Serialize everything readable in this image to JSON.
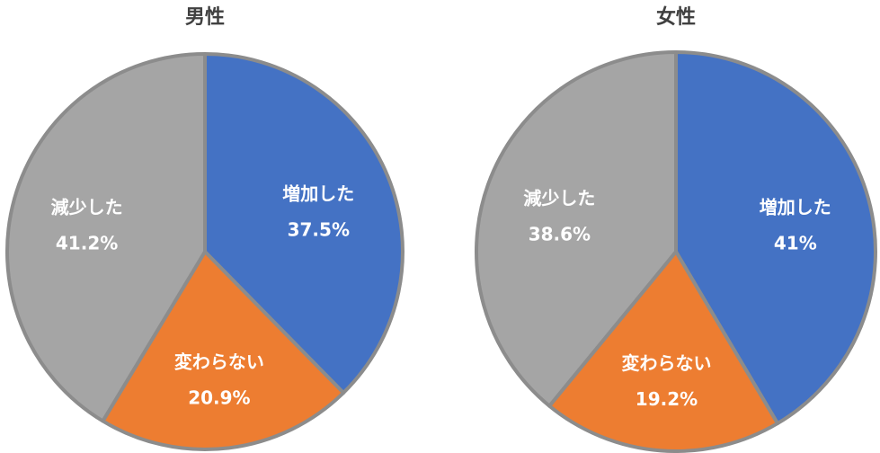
{
  "chart_data": [
    {
      "type": "pie",
      "title": "男性",
      "categories": [
        "増加した",
        "変わらない",
        "減少した"
      ],
      "values": [
        37.5,
        20.9,
        41.2
      ],
      "value_labels": [
        "37.5%",
        "20.9%",
        "41.2%"
      ],
      "colors": [
        "#4472C4",
        "#ED7D31",
        "#A5A5A5"
      ],
      "start": "12 o'clock",
      "direction": "clockwise"
    },
    {
      "type": "pie",
      "title": "女性",
      "categories": [
        "増加した",
        "変わらない",
        "減少した"
      ],
      "values": [
        41,
        19.2,
        38.6
      ],
      "value_labels": [
        "41%",
        "19.2%",
        "38.6%"
      ],
      "colors": [
        "#4472C4",
        "#ED7D31",
        "#A5A5A5"
      ],
      "start": "12 o'clock",
      "direction": "clockwise"
    }
  ]
}
